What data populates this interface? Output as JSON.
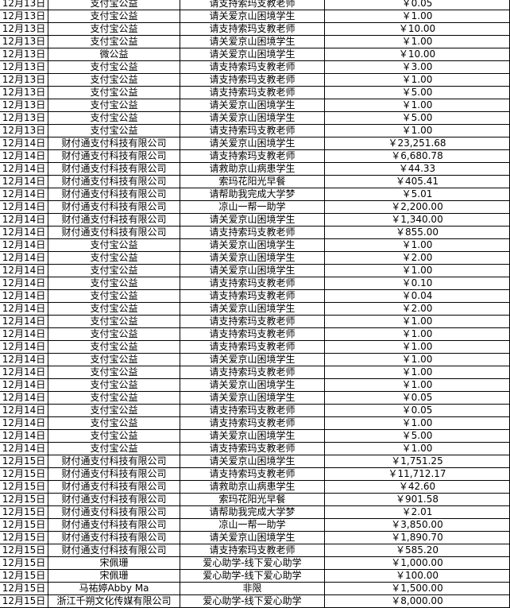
{
  "rows": [
    [
      "12月13日",
      "支付宝公益",
      "请支持索玛支教老师",
      "￥0.05"
    ],
    [
      "12月13日",
      "支付宝公益",
      "请关爱京山困境学生",
      "￥1.00"
    ],
    [
      "12月13日",
      "支付宝公益",
      "请支持索玛支教老师",
      "￥10.00"
    ],
    [
      "12月13日",
      "支付宝公益",
      "请关爱京山困境学生",
      "￥1.00"
    ],
    [
      "12月13日",
      "微公益",
      "请关爱京山困境学生",
      "￥10.00"
    ],
    [
      "12月13日",
      "支付宝公益",
      "请支持索玛支教老师",
      "￥3.00"
    ],
    [
      "12月13日",
      "支付宝公益",
      "请支持索玛支教老师",
      "￥1.00"
    ],
    [
      "12月13日",
      "支付宝公益",
      "请支持索玛支教老师",
      "￥5.00"
    ],
    [
      "12月13日",
      "支付宝公益",
      "请关爱京山困境学生",
      "￥1.00"
    ],
    [
      "12月13日",
      "支付宝公益",
      "请关爱京山困境学生",
      "￥5.00"
    ],
    [
      "12月13日",
      "支付宝公益",
      "请支持索玛支教老师",
      "￥1.00"
    ],
    [
      "12月14日",
      "财付通支付科技有限公司",
      "请关爱京山困境学生",
      "￥23,251.68"
    ],
    [
      "12月14日",
      "财付通支付科技有限公司",
      "请支持索玛支教老师",
      "￥6,680.78"
    ],
    [
      "12月14日",
      "财付通支付科技有限公司",
      "请救助京山病患学生",
      "￥44.33"
    ],
    [
      "12月14日",
      "财付通支付科技有限公司",
      "索玛花阳光早餐",
      "￥405.41"
    ],
    [
      "12月14日",
      "财付通支付科技有限公司",
      "请帮助我完成大学梦",
      "￥5.01"
    ],
    [
      "12月14日",
      "财付通支付科技有限公司",
      "凉山一帮一助学",
      "￥2,200.00"
    ],
    [
      "12月14日",
      "财付通支付科技有限公司",
      "请关爱京山困境学生",
      "￥1,340.00"
    ],
    [
      "12月14日",
      "财付通支付科技有限公司",
      "请支持索玛支教老师",
      "￥855.00"
    ],
    [
      "12月14日",
      "支付宝公益",
      "请关爱京山困境学生",
      "￥1.00"
    ],
    [
      "12月14日",
      "支付宝公益",
      "请关爱京山困境学生",
      "￥2.00"
    ],
    [
      "12月14日",
      "支付宝公益",
      "请关爱京山困境学生",
      "￥1.00"
    ],
    [
      "12月14日",
      "支付宝公益",
      "请支持索玛支教老师",
      "￥0.10"
    ],
    [
      "12月14日",
      "支付宝公益",
      "请支持索玛支教老师",
      "￥0.04"
    ],
    [
      "12月14日",
      "支付宝公益",
      "请关爱京山困境学生",
      "￥2.00"
    ],
    [
      "12月14日",
      "支付宝公益",
      "请支持索玛支教老师",
      "￥1.00"
    ],
    [
      "12月14日",
      "支付宝公益",
      "请支持索玛支教老师",
      "￥1.00"
    ],
    [
      "12月14日",
      "支付宝公益",
      "请支持索玛支教老师",
      "￥1.00"
    ],
    [
      "12月14日",
      "支付宝公益",
      "请关爱京山困境学生",
      "￥1.00"
    ],
    [
      "12月14日",
      "支付宝公益",
      "请支持索玛支教老师",
      "￥1.00"
    ],
    [
      "12月14日",
      "支付宝公益",
      "请关爱京山困境学生",
      "￥1.00"
    ],
    [
      "12月14日",
      "支付宝公益",
      "请关爱京山困境学生",
      "￥0.05"
    ],
    [
      "12月14日",
      "支付宝公益",
      "请支持索玛支教老师",
      "￥0.05"
    ],
    [
      "12月14日",
      "支付宝公益",
      "请支持索玛支教老师",
      "￥1.00"
    ],
    [
      "12月14日",
      "支付宝公益",
      "请关爱京山困境学生",
      "￥5.00"
    ],
    [
      "12月14日",
      "支付宝公益",
      "请支持索玛支教老师",
      "￥1.00"
    ],
    [
      "12月15日",
      "财付通支付科技有限公司",
      "请关爱京山困境学生",
      "￥1,751.25"
    ],
    [
      "12月15日",
      "财付通支付科技有限公司",
      "请支持索玛支教老师",
      "￥11,712.17"
    ],
    [
      "12月15日",
      "财付通支付科技有限公司",
      "请救助京山病患学生",
      "￥42.60"
    ],
    [
      "12月15日",
      "财付通支付科技有限公司",
      "索玛花阳光早餐",
      "￥901.58"
    ],
    [
      "12月15日",
      "财付通支付科技有限公司",
      "请帮助我完成大学梦",
      "￥2.01"
    ],
    [
      "12月15日",
      "财付通支付科技有限公司",
      "凉山一帮一助学",
      "￥3,850.00"
    ],
    [
      "12月15日",
      "财付通支付科技有限公司",
      "请关爱京山困境学生",
      "￥1,890.70"
    ],
    [
      "12月15日",
      "财付通支付科技有限公司",
      "请支持索玛支教老师",
      "￥585.20"
    ],
    [
      "12月15日",
      "宋佩珊",
      "爱心助学-线下爱心助学",
      "￥1,000.00"
    ],
    [
      "12月15日",
      "宋佩珊",
      "爱心助学-线下爱心助学",
      "￥100.00"
    ],
    [
      "12月15日",
      "马祐婷Abby Ma",
      "非限",
      "￥1,500.00"
    ],
    [
      "12月15日",
      "浙江千朔文化传媒有限公司",
      "爱心助学-线下爱心助学",
      "￥8,000.00"
    ]
  ]
}
